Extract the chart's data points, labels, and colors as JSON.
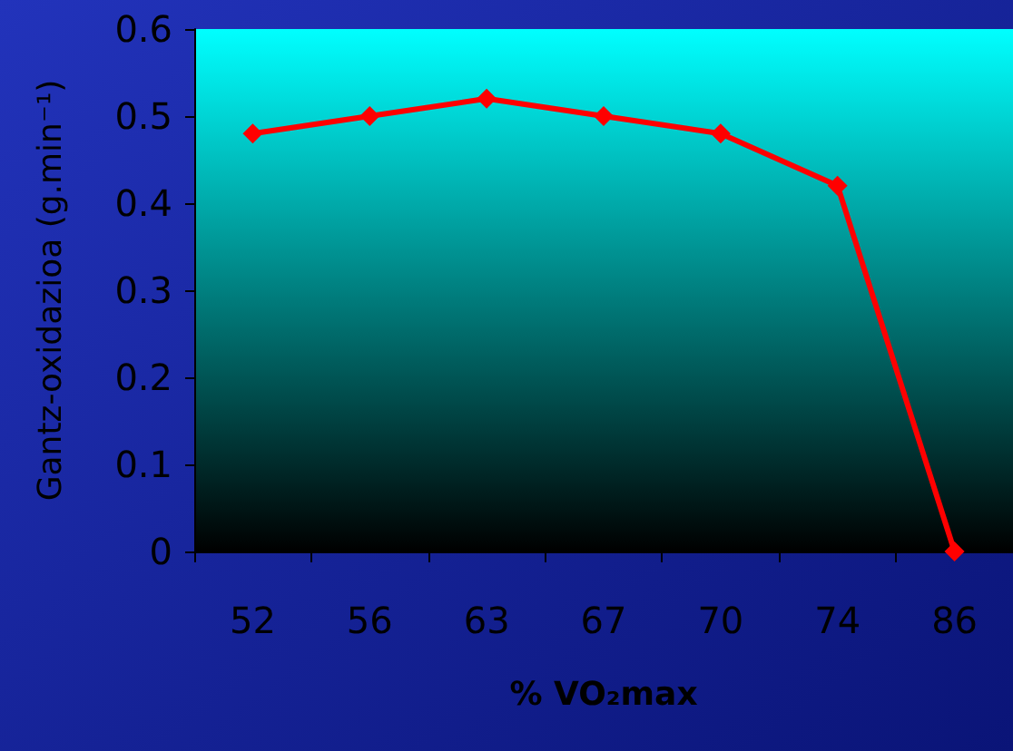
{
  "chart_data": {
    "type": "line",
    "xlabel": "% VO₂max",
    "ylabel": "Gantz-oxidazioa (g.min⁻¹)",
    "categories": [
      "52",
      "56",
      "63",
      "67",
      "70",
      "74",
      "86"
    ],
    "series": [
      {
        "color": "#ff0000",
        "values": [
          0.48,
          0.5,
          0.52,
          0.5,
          0.48,
          0.42,
          0
        ]
      }
    ],
    "ylim": [
      0,
      0.6
    ],
    "yticks": [
      0,
      0.1,
      0.2,
      0.3,
      0.4,
      0.5,
      0.6
    ],
    "grid": false,
    "marker": "diamond",
    "line_style": "solid"
  }
}
